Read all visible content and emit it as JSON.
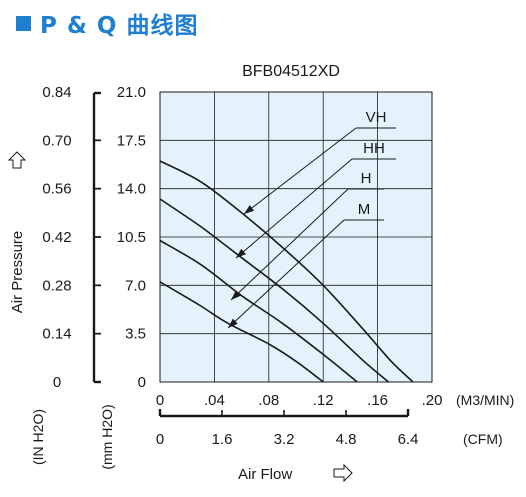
{
  "header": {
    "title": "P & Q 曲线图"
  },
  "colors": {
    "accent": "#1f7fd0",
    "plot_bg": "#e4f3fb",
    "curve": "#1a1a1a"
  },
  "chart_data": {
    "type": "line",
    "title": "BFB04512XD",
    "xlabel": "Air Flow",
    "ylabel": "Air Pressure",
    "xlim": [
      0,
      0.2
    ],
    "ylim": [
      0,
      0.84
    ],
    "grid": true,
    "x_unit": "(M3/MIN)",
    "x_ticks": [
      ".04",
      ".08",
      ".12",
      ".16",
      ".20"
    ],
    "x_zero_label": "0",
    "x2_unit": "(CFM)",
    "x2_ticks": [
      "0",
      "1.6",
      "3.2",
      "4.8",
      "6.4"
    ],
    "y_unit": "(IN H2O)",
    "y_ticks": [
      "0",
      "0.14",
      "0.28",
      "0.42",
      "0.56",
      "0.70",
      "0.84"
    ],
    "y2_unit": "(mm H2O)",
    "y2_ticks": [
      "0",
      "3.5",
      "7.0",
      "10.5",
      "14.0",
      "17.5",
      "21.0"
    ],
    "series": [
      {
        "name": "VH",
        "x": [
          0,
          0.03,
          0.06,
          0.09,
          0.12,
          0.15,
          0.17,
          0.186
        ],
        "y": [
          0.64,
          0.58,
          0.49,
          0.39,
          0.28,
          0.15,
          0.06,
          0
        ]
      },
      {
        "name": "HH",
        "x": [
          0,
          0.03,
          0.06,
          0.09,
          0.12,
          0.15,
          0.168
        ],
        "y": [
          0.53,
          0.45,
          0.36,
          0.27,
          0.17,
          0.06,
          0
        ]
      },
      {
        "name": "H",
        "x": [
          0,
          0.03,
          0.06,
          0.09,
          0.12,
          0.145
        ],
        "y": [
          0.41,
          0.34,
          0.25,
          0.17,
          0.08,
          0
        ]
      },
      {
        "name": "M",
        "x": [
          0,
          0.03,
          0.05,
          0.08,
          0.1,
          0.12
        ],
        "y": [
          0.29,
          0.22,
          0.17,
          0.11,
          0.06,
          0
        ]
      }
    ]
  }
}
